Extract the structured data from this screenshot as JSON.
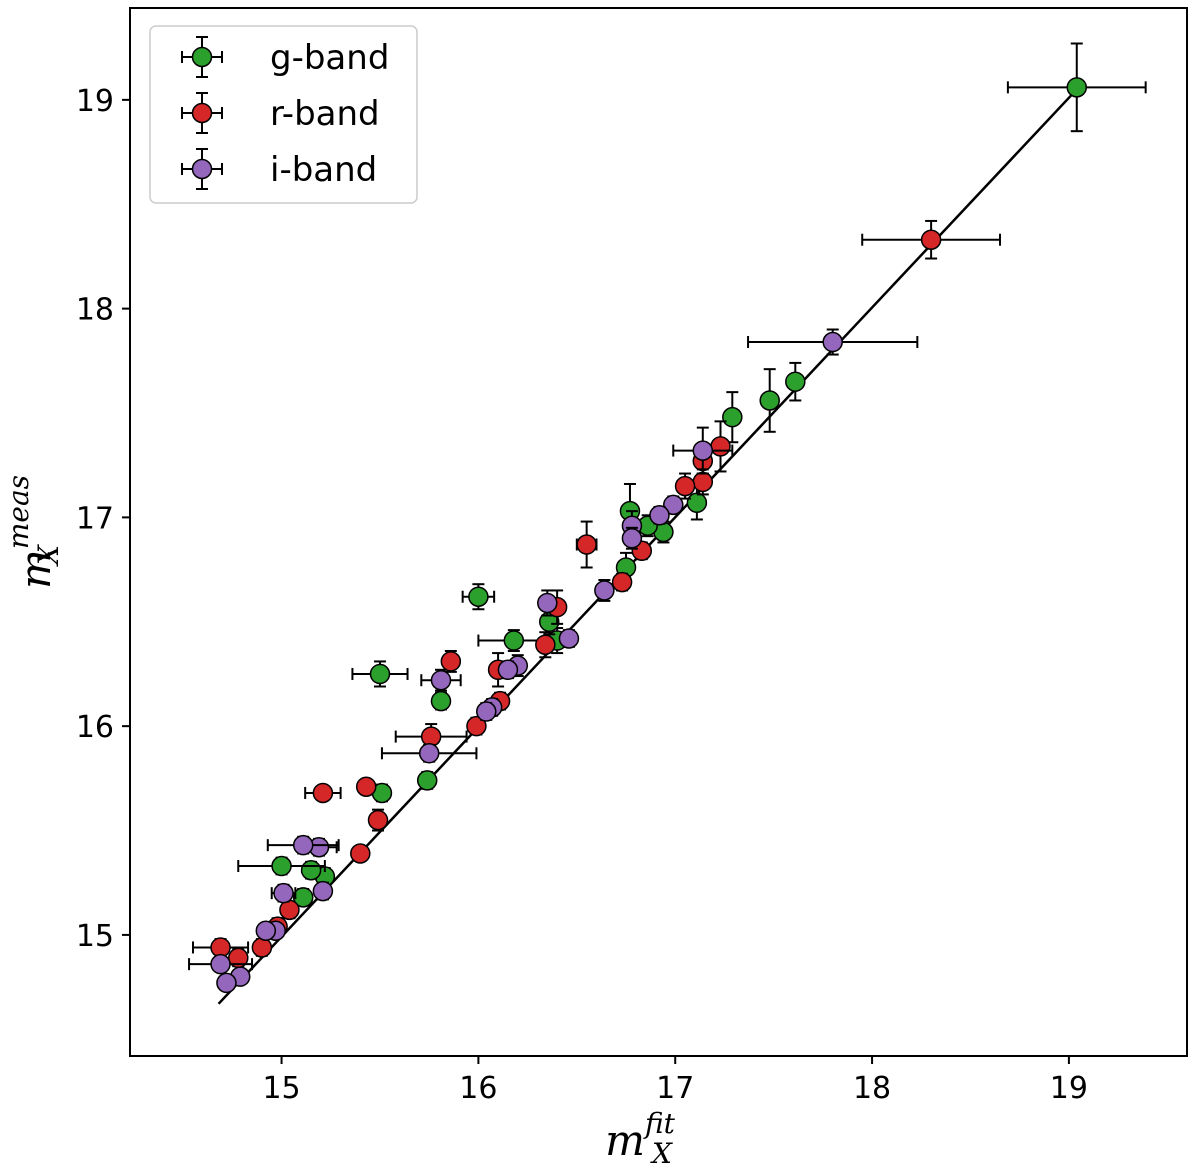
{
  "chart_data": {
    "type": "scatter",
    "title": "",
    "xlabel": {
      "base": "m",
      "sup": "fit",
      "sub": "X"
    },
    "ylabel": {
      "base": "m",
      "sup": "meas",
      "sub": "X"
    },
    "xlim": [
      14.23,
      19.6
    ],
    "ylim": [
      14.42,
      19.44
    ],
    "xticks": [
      15,
      16,
      17,
      18,
      19
    ],
    "yticks": [
      15,
      16,
      17,
      18,
      19
    ],
    "grid": false,
    "legend_position": "top-left",
    "reference_line": {
      "x": [
        14.68,
        19.05
      ],
      "y": [
        14.67,
        19.06
      ]
    },
    "series": [
      {
        "name": "g-band",
        "color": "#2ca02c",
        "points": [
          {
            "x": 19.04,
            "y": 19.06,
            "xerr": 0.35,
            "yerr": 0.21
          },
          {
            "x": 17.61,
            "y": 17.65,
            "xerr": 0,
            "yerr": 0.09
          },
          {
            "x": 17.48,
            "y": 17.56,
            "xerr": 0,
            "yerr": 0.15
          },
          {
            "x": 17.29,
            "y": 17.48,
            "xerr": 0,
            "yerr": 0.12
          },
          {
            "x": 17.11,
            "y": 17.07,
            "xerr": 0,
            "yerr": 0.08
          },
          {
            "x": 16.94,
            "y": 16.93,
            "xerr": 0,
            "yerr": 0.05
          },
          {
            "x": 16.86,
            "y": 16.96,
            "xerr": 0,
            "yerr": 0.05
          },
          {
            "x": 16.77,
            "y": 17.03,
            "xerr": 0,
            "yerr": 0.13
          },
          {
            "x": 16.75,
            "y": 16.76,
            "xerr": 0,
            "yerr": 0.07
          },
          {
            "x": 16.4,
            "y": 16.41,
            "xerr": 0,
            "yerr": 0.06
          },
          {
            "x": 16.36,
            "y": 16.5,
            "xerr": 0,
            "yerr": 0.06
          },
          {
            "x": 16.18,
            "y": 16.41,
            "xerr": 0.18,
            "yerr": 0.05
          },
          {
            "x": 16.0,
            "y": 16.62,
            "xerr": 0.08,
            "yerr": 0.06
          },
          {
            "x": 15.81,
            "y": 16.12,
            "xerr": 0,
            "yerr": 0.04
          },
          {
            "x": 15.5,
            "y": 16.25,
            "xerr": 0.14,
            "yerr": 0.06
          },
          {
            "x": 15.74,
            "y": 15.74,
            "xerr": 0,
            "yerr": 0.04
          },
          {
            "x": 15.51,
            "y": 15.68,
            "xerr": 0,
            "yerr": 0.04
          },
          {
            "x": 15.22,
            "y": 15.28,
            "xerr": 0,
            "yerr": 0.04
          },
          {
            "x": 15.15,
            "y": 15.31,
            "xerr": 0,
            "yerr": 0.04
          },
          {
            "x": 15.11,
            "y": 15.18,
            "xerr": 0,
            "yerr": 0.04
          },
          {
            "x": 15.0,
            "y": 15.33,
            "xerr": 0.22,
            "yerr": 0.04
          }
        ]
      },
      {
        "name": "r-band",
        "color": "#d62728",
        "points": [
          {
            "x": 18.3,
            "y": 18.33,
            "xerr": 0.35,
            "yerr": 0.09
          },
          {
            "x": 17.23,
            "y": 17.34,
            "xerr": 0,
            "yerr": 0.12
          },
          {
            "x": 17.14,
            "y": 17.27,
            "xerr": 0,
            "yerr": 0.06
          },
          {
            "x": 17.14,
            "y": 17.17,
            "xerr": 0,
            "yerr": 0.06
          },
          {
            "x": 17.05,
            "y": 17.15,
            "xerr": 0,
            "yerr": 0.06
          },
          {
            "x": 16.83,
            "y": 16.84,
            "xerr": 0,
            "yerr": 0.04
          },
          {
            "x": 16.73,
            "y": 16.69,
            "xerr": 0,
            "yerr": 0.04
          },
          {
            "x": 16.55,
            "y": 16.87,
            "xerr": 0.05,
            "yerr": 0.11
          },
          {
            "x": 16.4,
            "y": 16.57,
            "xerr": 0,
            "yerr": 0.08
          },
          {
            "x": 16.34,
            "y": 16.39,
            "xerr": 0,
            "yerr": 0.06
          },
          {
            "x": 16.11,
            "y": 16.12,
            "xerr": 0,
            "yerr": 0.04
          },
          {
            "x": 16.1,
            "y": 16.27,
            "xerr": 0,
            "yerr": 0.08
          },
          {
            "x": 15.99,
            "y": 16.0,
            "xerr": 0,
            "yerr": 0.04
          },
          {
            "x": 15.86,
            "y": 16.31,
            "xerr": 0,
            "yerr": 0.05
          },
          {
            "x": 15.76,
            "y": 15.95,
            "xerr": 0.18,
            "yerr": 0.06
          },
          {
            "x": 15.43,
            "y": 15.71,
            "xerr": 0,
            "yerr": 0.03
          },
          {
            "x": 15.49,
            "y": 15.55,
            "xerr": 0,
            "yerr": 0.05
          },
          {
            "x": 15.4,
            "y": 15.39,
            "xerr": 0,
            "yerr": 0.03
          },
          {
            "x": 15.21,
            "y": 15.68,
            "xerr": 0.09,
            "yerr": 0.03
          },
          {
            "x": 15.04,
            "y": 15.12,
            "xerr": 0,
            "yerr": 0.04
          },
          {
            "x": 14.98,
            "y": 15.04,
            "xerr": 0,
            "yerr": 0.04
          },
          {
            "x": 14.9,
            "y": 14.94,
            "xerr": 0,
            "yerr": 0.04
          },
          {
            "x": 14.78,
            "y": 14.89,
            "xerr": 0,
            "yerr": 0.04
          },
          {
            "x": 14.69,
            "y": 14.94,
            "xerr": 0.14,
            "yerr": 0.04
          }
        ]
      },
      {
        "name": "i-band",
        "color": "#9467bd",
        "points": [
          {
            "x": 17.8,
            "y": 17.84,
            "xerr": 0.43,
            "yerr": 0.06
          },
          {
            "x": 17.14,
            "y": 17.32,
            "xerr": 0.15,
            "yerr": 0.11
          },
          {
            "x": 16.99,
            "y": 17.06,
            "xerr": 0,
            "yerr": 0.04
          },
          {
            "x": 16.92,
            "y": 17.01,
            "xerr": 0,
            "yerr": 0.04
          },
          {
            "x": 16.78,
            "y": 16.96,
            "xerr": 0,
            "yerr": 0.07
          },
          {
            "x": 16.78,
            "y": 16.9,
            "xerr": 0,
            "yerr": 0.05
          },
          {
            "x": 16.64,
            "y": 16.65,
            "xerr": 0,
            "yerr": 0.05
          },
          {
            "x": 16.46,
            "y": 16.42,
            "xerr": 0,
            "yerr": 0.04
          },
          {
            "x": 16.35,
            "y": 16.59,
            "xerr": 0,
            "yerr": 0.06
          },
          {
            "x": 16.2,
            "y": 16.29,
            "xerr": 0,
            "yerr": 0.05
          },
          {
            "x": 16.15,
            "y": 16.27,
            "xerr": 0,
            "yerr": 0.04
          },
          {
            "x": 16.07,
            "y": 16.09,
            "xerr": 0,
            "yerr": 0.04
          },
          {
            "x": 16.04,
            "y": 16.07,
            "xerr": 0,
            "yerr": 0.04
          },
          {
            "x": 15.81,
            "y": 16.22,
            "xerr": 0.1,
            "yerr": 0.05
          },
          {
            "x": 15.75,
            "y": 15.87,
            "xerr": 0.24,
            "yerr": 0.04
          },
          {
            "x": 15.21,
            "y": 15.21,
            "xerr": 0,
            "yerr": 0.04
          },
          {
            "x": 15.19,
            "y": 15.42,
            "xerr": 0.09,
            "yerr": 0.04
          },
          {
            "x": 15.11,
            "y": 15.43,
            "xerr": 0.18,
            "yerr": 0.04
          },
          {
            "x": 15.01,
            "y": 15.2,
            "xerr": 0.06,
            "yerr": 0.04
          },
          {
            "x": 14.97,
            "y": 15.02,
            "xerr": 0,
            "yerr": 0.03
          },
          {
            "x": 14.92,
            "y": 15.02,
            "xerr": 0,
            "yerr": 0.03
          },
          {
            "x": 14.79,
            "y": 14.8,
            "xerr": 0,
            "yerr": 0.03
          },
          {
            "x": 14.72,
            "y": 14.77,
            "xerr": 0,
            "yerr": 0.03
          },
          {
            "x": 14.69,
            "y": 14.86,
            "xerr": 0.16,
            "yerr": 0.03
          }
        ]
      }
    ]
  }
}
